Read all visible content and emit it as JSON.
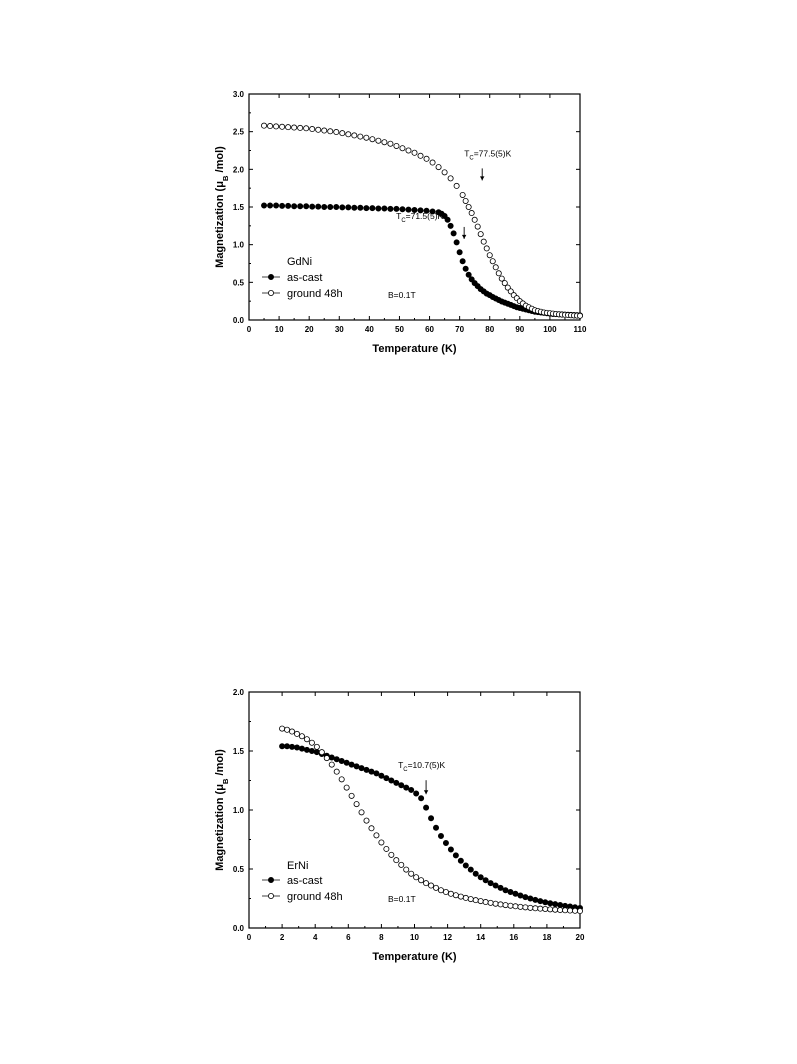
{
  "chart_data": [
    {
      "type": "scatter",
      "title": "",
      "xlabel": "Temperature (K)",
      "ylabel_main": "Magnetization (μ",
      "ylabel_sub": "B",
      "ylabel_tail": " /mol)",
      "xlim": [
        0,
        110
      ],
      "ylim": [
        0,
        3.0
      ],
      "xticks": [
        "0",
        "10",
        "20",
        "30",
        "40",
        "50",
        "60",
        "70",
        "80",
        "90",
        "100",
        "110"
      ],
      "yticks": [
        "0.0",
        "0.5",
        "1.0",
        "1.5",
        "2.0",
        "2.5",
        "3.0"
      ],
      "legend_title": "GdNi",
      "legend_placement": "lower-left",
      "field_label": "B=0.1T",
      "series": [
        {
          "name": "as-cast",
          "marker": "filled-circle",
          "color": "#000000",
          "x": [
            5,
            7,
            9,
            11,
            13,
            15,
            17,
            19,
            21,
            23,
            25,
            27,
            29,
            31,
            33,
            35,
            37,
            39,
            41,
            43,
            45,
            47,
            49,
            51,
            53,
            55,
            57,
            59,
            61,
            63,
            64,
            65,
            66,
            67,
            68,
            69,
            70,
            71,
            72,
            73,
            74,
            75,
            76,
            77,
            78,
            79,
            80,
            81,
            82,
            83,
            84,
            85,
            86,
            87,
            88,
            89,
            90,
            91,
            92,
            93,
            94,
            95,
            96,
            97,
            98,
            99,
            100,
            101,
            102,
            103,
            104,
            105,
            106,
            107,
            108,
            109,
            110
          ],
          "y": [
            1.52,
            1.52,
            1.52,
            1.515,
            1.515,
            1.51,
            1.51,
            1.51,
            1.505,
            1.505,
            1.5,
            1.5,
            1.5,
            1.495,
            1.495,
            1.49,
            1.49,
            1.485,
            1.485,
            1.48,
            1.48,
            1.475,
            1.475,
            1.47,
            1.465,
            1.46,
            1.455,
            1.45,
            1.44,
            1.43,
            1.41,
            1.38,
            1.33,
            1.25,
            1.15,
            1.03,
            0.9,
            0.78,
            0.68,
            0.6,
            0.54,
            0.49,
            0.45,
            0.41,
            0.38,
            0.35,
            0.33,
            0.305,
            0.285,
            0.265,
            0.245,
            0.23,
            0.215,
            0.2,
            0.185,
            0.17,
            0.16,
            0.15,
            0.14,
            0.13,
            0.12,
            0.11,
            0.105,
            0.1,
            0.095,
            0.09,
            0.085,
            0.08,
            0.078,
            0.076,
            0.074,
            0.072,
            0.07,
            0.068,
            0.066,
            0.064,
            0.062
          ]
        },
        {
          "name": "ground 48h",
          "marker": "open-circle",
          "color": "#000000",
          "x": [
            5,
            7,
            9,
            11,
            13,
            15,
            17,
            19,
            21,
            23,
            25,
            27,
            29,
            31,
            33,
            35,
            37,
            39,
            41,
            43,
            45,
            47,
            49,
            51,
            53,
            55,
            57,
            59,
            61,
            63,
            65,
            67,
            69,
            71,
            72,
            73,
            74,
            75,
            76,
            77,
            78,
            79,
            80,
            81,
            82,
            83,
            84,
            85,
            86,
            87,
            88,
            89,
            90,
            91,
            92,
            93,
            94,
            95,
            96,
            97,
            98,
            99,
            100,
            101,
            102,
            103,
            104,
            105,
            106,
            107,
            108,
            109,
            110
          ],
          "y": [
            2.58,
            2.575,
            2.57,
            2.565,
            2.56,
            2.555,
            2.55,
            2.545,
            2.535,
            2.525,
            2.515,
            2.505,
            2.495,
            2.48,
            2.465,
            2.45,
            2.435,
            2.42,
            2.4,
            2.38,
            2.36,
            2.34,
            2.31,
            2.28,
            2.25,
            2.22,
            2.18,
            2.14,
            2.09,
            2.03,
            1.96,
            1.88,
            1.78,
            1.66,
            1.58,
            1.5,
            1.42,
            1.33,
            1.24,
            1.14,
            1.04,
            0.95,
            0.86,
            0.78,
            0.7,
            0.62,
            0.55,
            0.49,
            0.43,
            0.38,
            0.33,
            0.29,
            0.25,
            0.22,
            0.19,
            0.17,
            0.15,
            0.13,
            0.12,
            0.11,
            0.1,
            0.095,
            0.09,
            0.085,
            0.08,
            0.075,
            0.072,
            0.069,
            0.066,
            0.063,
            0.06,
            0.058,
            0.056
          ]
        }
      ],
      "annotations": [
        {
          "label_main": "T",
          "label_sub": "C",
          "label_tail": "=77.5(5)K",
          "x": 77.5,
          "y": 1.8
        },
        {
          "label_main": "T",
          "label_sub": "C",
          "label_tail": "=71.5(5)K",
          "x": 71.5,
          "y": 0.97
        }
      ]
    },
    {
      "type": "scatter",
      "title": "",
      "xlabel": "Temperature (K)",
      "ylabel_main": "Magnetization (μ",
      "ylabel_sub": "B",
      "ylabel_tail": " /mol)",
      "xlim": [
        0,
        20
      ],
      "ylim": [
        0,
        2.0
      ],
      "xticks": [
        "0",
        "2",
        "4",
        "6",
        "8",
        "10",
        "12",
        "14",
        "16",
        "18",
        "20"
      ],
      "yticks": [
        "0.0",
        "0.5",
        "1.0",
        "1.5",
        "2.0"
      ],
      "legend_title": "ErNi",
      "legend_placement": "lower-left",
      "field_label": "B=0.1T",
      "series": [
        {
          "name": "as-cast",
          "marker": "filled-circle",
          "color": "#000000",
          "x": [
            2,
            2.3,
            2.6,
            2.9,
            3.2,
            3.5,
            3.8,
            4.1,
            4.4,
            4.7,
            5,
            5.3,
            5.6,
            5.9,
            6.2,
            6.5,
            6.8,
            7.1,
            7.4,
            7.7,
            8,
            8.3,
            8.6,
            8.9,
            9.2,
            9.5,
            9.8,
            10.1,
            10.4,
            10.7,
            11,
            11.3,
            11.6,
            11.9,
            12.2,
            12.5,
            12.8,
            13.1,
            13.4,
            13.7,
            14,
            14.3,
            14.6,
            14.9,
            15.2,
            15.5,
            15.8,
            16.1,
            16.4,
            16.7,
            17,
            17.3,
            17.6,
            17.9,
            18.2,
            18.5,
            18.8,
            19.1,
            19.4,
            19.7,
            20
          ],
          "y": [
            1.54,
            1.54,
            1.535,
            1.53,
            1.52,
            1.51,
            1.5,
            1.49,
            1.475,
            1.46,
            1.445,
            1.43,
            1.415,
            1.4,
            1.385,
            1.37,
            1.355,
            1.34,
            1.325,
            1.31,
            1.29,
            1.27,
            1.25,
            1.23,
            1.21,
            1.19,
            1.17,
            1.14,
            1.1,
            1.02,
            0.93,
            0.85,
            0.78,
            0.72,
            0.665,
            0.615,
            0.57,
            0.53,
            0.495,
            0.46,
            0.43,
            0.405,
            0.38,
            0.36,
            0.34,
            0.32,
            0.305,
            0.29,
            0.275,
            0.262,
            0.25,
            0.238,
            0.228,
            0.218,
            0.21,
            0.202,
            0.195,
            0.188,
            0.182,
            0.176,
            0.17
          ]
        },
        {
          "name": "ground 48h",
          "marker": "open-circle",
          "color": "#000000",
          "x": [
            2,
            2.3,
            2.6,
            2.9,
            3.2,
            3.5,
            3.8,
            4.1,
            4.4,
            4.7,
            5,
            5.3,
            5.6,
            5.9,
            6.2,
            6.5,
            6.8,
            7.1,
            7.4,
            7.7,
            8,
            8.3,
            8.6,
            8.9,
            9.2,
            9.5,
            9.8,
            10.1,
            10.4,
            10.7,
            11,
            11.3,
            11.6,
            11.9,
            12.2,
            12.5,
            12.8,
            13.1,
            13.4,
            13.7,
            14,
            14.3,
            14.6,
            14.9,
            15.2,
            15.5,
            15.8,
            16.1,
            16.4,
            16.7,
            17,
            17.3,
            17.6,
            17.9,
            18.2,
            18.5,
            18.8,
            19.1,
            19.4,
            19.7,
            20
          ],
          "y": [
            1.69,
            1.68,
            1.665,
            1.645,
            1.625,
            1.6,
            1.57,
            1.535,
            1.49,
            1.44,
            1.385,
            1.325,
            1.26,
            1.19,
            1.12,
            1.05,
            0.98,
            0.91,
            0.845,
            0.785,
            0.725,
            0.67,
            0.62,
            0.575,
            0.535,
            0.495,
            0.46,
            0.43,
            0.405,
            0.38,
            0.36,
            0.34,
            0.32,
            0.305,
            0.29,
            0.278,
            0.266,
            0.255,
            0.245,
            0.236,
            0.228,
            0.22,
            0.213,
            0.206,
            0.2,
            0.194,
            0.189,
            0.184,
            0.179,
            0.175,
            0.171,
            0.167,
            0.164,
            0.161,
            0.158,
            0.155,
            0.152,
            0.15,
            0.148,
            0.146,
            0.144
          ]
        }
      ],
      "annotations": [
        {
          "label_main": "T",
          "label_sub": "C",
          "label_tail": "=10.7(5)K",
          "x": 10.7,
          "y": 1.1
        }
      ]
    }
  ]
}
